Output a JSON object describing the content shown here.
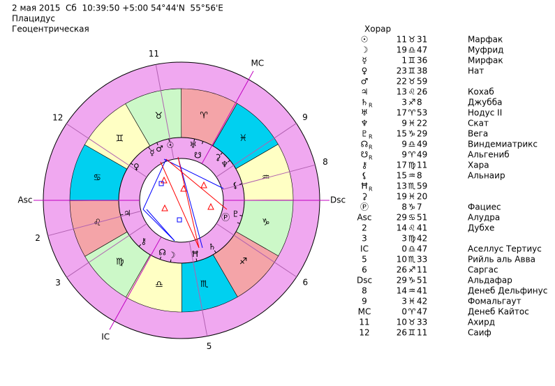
{
  "header": {
    "line1": "2 мая 2015  Сб  10:39:50 +5:00 54°44'N  55°56'E",
    "line2": "Плацидус",
    "line3": "Геоцентрическая"
  },
  "wheel": {
    "signs": [
      "♈",
      "♉",
      "♊",
      "♋",
      "♌",
      "♍",
      "♎",
      "♏",
      "♐",
      "♑",
      "♒",
      "♓"
    ]
  },
  "table": {
    "title": "Хорар",
    "planets": [
      {
        "symbol": "☉",
        "deg": 11,
        "sign": "♉",
        "min": 31,
        "star": "Марфак"
      },
      {
        "symbol": "☽",
        "deg": 19,
        "sign": "♎",
        "min": 47,
        "star": "Муфрид"
      },
      {
        "symbol": "☿",
        "deg": 1,
        "sign": "♊",
        "min": 36,
        "star": "Мирфак"
      },
      {
        "symbol": "♀",
        "deg": 23,
        "sign": "♊",
        "min": 38,
        "star": "Нат"
      },
      {
        "symbol": "♂",
        "deg": 22,
        "sign": "♉",
        "min": 59
      },
      {
        "symbol": "♃",
        "deg": 13,
        "sign": "♌",
        "min": 26,
        "star": "Кохаб"
      },
      {
        "symbol": "♄",
        "retro": "R",
        "deg": 3,
        "sign": "♐",
        "min": 8,
        "star": "Джубба"
      },
      {
        "symbol": "♅",
        "deg": 17,
        "sign": "♈",
        "min": 53,
        "star": "Нодус II"
      },
      {
        "symbol": "♆",
        "deg": 9,
        "sign": "♓",
        "min": 22,
        "star": "Скат"
      },
      {
        "symbol": "♇",
        "retro": "R",
        "deg": 15,
        "sign": "♑",
        "min": 29,
        "star": "Вега"
      },
      {
        "symbol": "☊",
        "retro": "R",
        "deg": 9,
        "sign": "♎",
        "min": 49,
        "star": "Виндемиатрикс"
      },
      {
        "symbol": "☋",
        "retro": "R",
        "deg": 9,
        "sign": "♈",
        "min": 49,
        "star": "Альгениб"
      },
      {
        "symbol": "⚷",
        "deg": 17,
        "sign": "♍",
        "min": 11,
        "star": "Хара"
      },
      {
        "symbol": "⚸",
        "deg": 15,
        "sign": "♒",
        "min": 8,
        "star": "Альнаир"
      },
      {
        "symbol": "Ħ",
        "retro": "R",
        "deg": 13,
        "sign": "♏",
        "min": 59
      },
      {
        "symbol": "⚳",
        "deg": 19,
        "sign": "♓",
        "min": 20
      },
      {
        "symbol": "Ⓟ",
        "deg": 8,
        "sign": "♑",
        "min": 7,
        "star": "Фациес"
      }
    ],
    "houses": [
      {
        "symbol": "Asc",
        "deg": 29,
        "sign": "♋",
        "min": 51,
        "star": "Алудра"
      },
      {
        "symbol": "2",
        "deg": 14,
        "sign": "♌",
        "min": 41,
        "star": "Дубхе"
      },
      {
        "symbol": "3",
        "deg": 3,
        "sign": "♍",
        "min": 42
      },
      {
        "symbol": "IC",
        "deg": 0,
        "sign": "♎",
        "min": 47,
        "star": "Аселлус Тертиус"
      },
      {
        "symbol": "5",
        "deg": 10,
        "sign": "♏",
        "min": 33,
        "star": "Рийль аль Авва"
      },
      {
        "symbol": "6",
        "deg": 26,
        "sign": "♐",
        "min": 11,
        "star": "Саргас"
      },
      {
        "symbol": "Dsc",
        "deg": 29,
        "sign": "♑",
        "min": 51,
        "star": "Альдафар"
      },
      {
        "symbol": "8",
        "deg": 14,
        "sign": "♒",
        "min": 41,
        "star": "Денеб Дельфинус"
      },
      {
        "symbol": "9",
        "deg": 3,
        "sign": "♓",
        "min": 42,
        "star": "Фомальгаут"
      },
      {
        "symbol": "MC",
        "deg": 0,
        "sign": "♈",
        "min": 47,
        "star": "Денеб Кайтос"
      },
      {
        "symbol": "11",
        "deg": 10,
        "sign": "♉",
        "min": 33,
        "star": "Ахирд"
      },
      {
        "symbol": "12",
        "deg": 26,
        "sign": "♊",
        "min": 11,
        "star": "Саиф"
      }
    ]
  }
}
